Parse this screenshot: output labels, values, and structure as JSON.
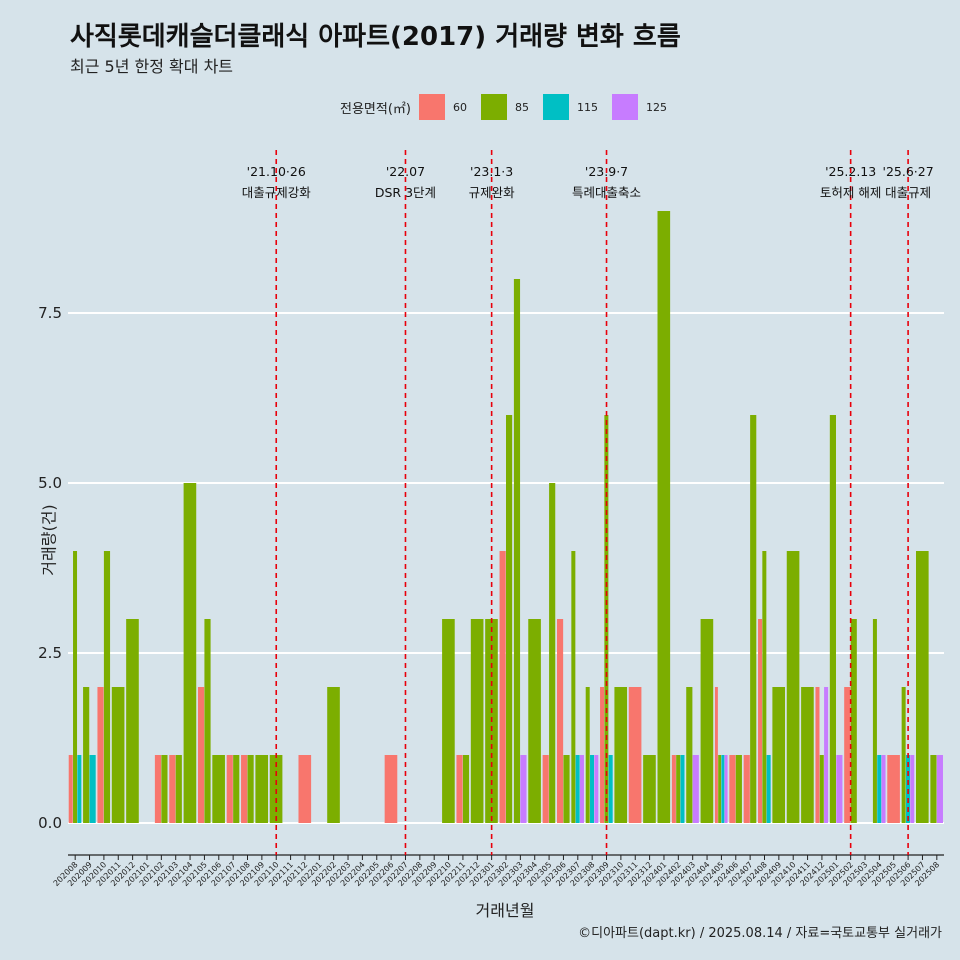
{
  "title": "사직롯데캐슬더클래식 아파트(2017) 거래량 변화 흐름",
  "subtitle": "최근 5년 한정 확대 차트",
  "caption": "©디아파트(dapt.kr) / 2025.08.14 / 자료=국토교통부 실거래가",
  "colors": {
    "60": "#f8766d",
    "85": "#7cae00",
    "115": "#00bfc4",
    "125": "#c77cff",
    "background": "#d6e3ea",
    "vline": "#e8000b"
  },
  "chart_data": {
    "type": "bar",
    "title": "사직롯데캐슬더클래식 아파트(2017) 거래량 변화 흐름",
    "subtitle": "최근 5년 한정 확대 차트",
    "xlabel": "거래년월",
    "ylabel": "거래량(건)",
    "ylim": [
      0,
      9
    ],
    "yticks": [
      "0.0",
      "2.5",
      "5.0",
      "7.5"
    ],
    "legend_title": "전용면적(㎡)",
    "legend_position": "top",
    "grid": true,
    "categories": [
      "202008",
      "202009",
      "202010",
      "202011",
      "202012",
      "202101",
      "202102",
      "202103",
      "202104",
      "202105",
      "202106",
      "202107",
      "202108",
      "202109",
      "202110",
      "202111",
      "202112",
      "202201",
      "202202",
      "202203",
      "202204",
      "202205",
      "202206",
      "202207",
      "202208",
      "202209",
      "202210",
      "202211",
      "202212",
      "202301",
      "202302",
      "202303",
      "202304",
      "202305",
      "202306",
      "202307",
      "202308",
      "202309",
      "202310",
      "202311",
      "202312",
      "202401",
      "202402",
      "202403",
      "202404",
      "202405",
      "202406",
      "202407",
      "202408",
      "202409",
      "202410",
      "202411",
      "202412",
      "202501",
      "202502",
      "202503",
      "202504",
      "202505",
      "202506",
      "202507",
      "202508"
    ],
    "series": [
      {
        "name": "60",
        "values": [
          1,
          0,
          2,
          0,
          0,
          0,
          1,
          1,
          0,
          2,
          0,
          1,
          1,
          0,
          0,
          0,
          1,
          0,
          0,
          0,
          0,
          0,
          1,
          0,
          0,
          0,
          0,
          1,
          0,
          0,
          4,
          0,
          0,
          1,
          3,
          0,
          0,
          2,
          0,
          2,
          0,
          0,
          1,
          0,
          0,
          2,
          1,
          1,
          3,
          0,
          0,
          0,
          2,
          0,
          2,
          0,
          0,
          1,
          0,
          0,
          0
        ]
      },
      {
        "name": "85",
        "values": [
          4,
          2,
          4,
          2,
          3,
          0,
          1,
          1,
          5,
          3,
          1,
          1,
          1,
          1,
          1,
          0,
          0,
          0,
          2,
          0,
          0,
          0,
          0,
          0,
          0,
          0,
          3,
          1,
          3,
          3,
          6,
          8,
          3,
          5,
          1,
          4,
          2,
          6,
          2,
          0,
          1,
          9,
          1,
          2,
          3,
          1,
          1,
          6,
          4,
          2,
          4,
          2,
          1,
          6,
          3,
          0,
          3,
          0,
          2,
          4,
          1
        ]
      },
      {
        "name": "115",
        "values": [
          1,
          1,
          0,
          0,
          0,
          0,
          0,
          0,
          0,
          0,
          0,
          0,
          0,
          0,
          0,
          0,
          0,
          0,
          0,
          0,
          0,
          0,
          0,
          0,
          0,
          0,
          0,
          0,
          0,
          0,
          0,
          0,
          0,
          0,
          0,
          1,
          1,
          1,
          0,
          0,
          0,
          0,
          1,
          0,
          0,
          1,
          0,
          0,
          1,
          0,
          0,
          0,
          0,
          0,
          0,
          0,
          1,
          0,
          1,
          0,
          0
        ]
      },
      {
        "name": "125",
        "values": [
          0,
          0,
          0,
          0,
          0,
          0,
          0,
          0,
          0,
          0,
          0,
          0,
          0,
          0,
          0,
          0,
          0,
          0,
          0,
          0,
          0,
          0,
          0,
          0,
          0,
          0,
          0,
          0,
          0,
          0,
          0,
          1,
          0,
          0,
          0,
          1,
          1,
          0,
          0,
          0,
          0,
          0,
          0,
          1,
          0,
          1,
          0,
          0,
          0,
          0,
          0,
          0,
          2,
          1,
          0,
          0,
          1,
          0,
          1,
          0,
          1
        ]
      }
    ],
    "annotations": [
      {
        "x": "202110",
        "date": "'21.10·26",
        "label": "대출규제강화"
      },
      {
        "x": "202207",
        "date": "'22.07",
        "label": "DSR 3단계"
      },
      {
        "x": "202301",
        "date": "'23.1·3",
        "label": "규제완화"
      },
      {
        "x": "202309",
        "date": "'23.9·7",
        "label": "특례대출축소"
      },
      {
        "x": "202502",
        "date": "'25.2.13",
        "label": "토허제 해제"
      },
      {
        "x": "202506",
        "date": "'25.6·27",
        "label": "대출규제"
      }
    ]
  }
}
